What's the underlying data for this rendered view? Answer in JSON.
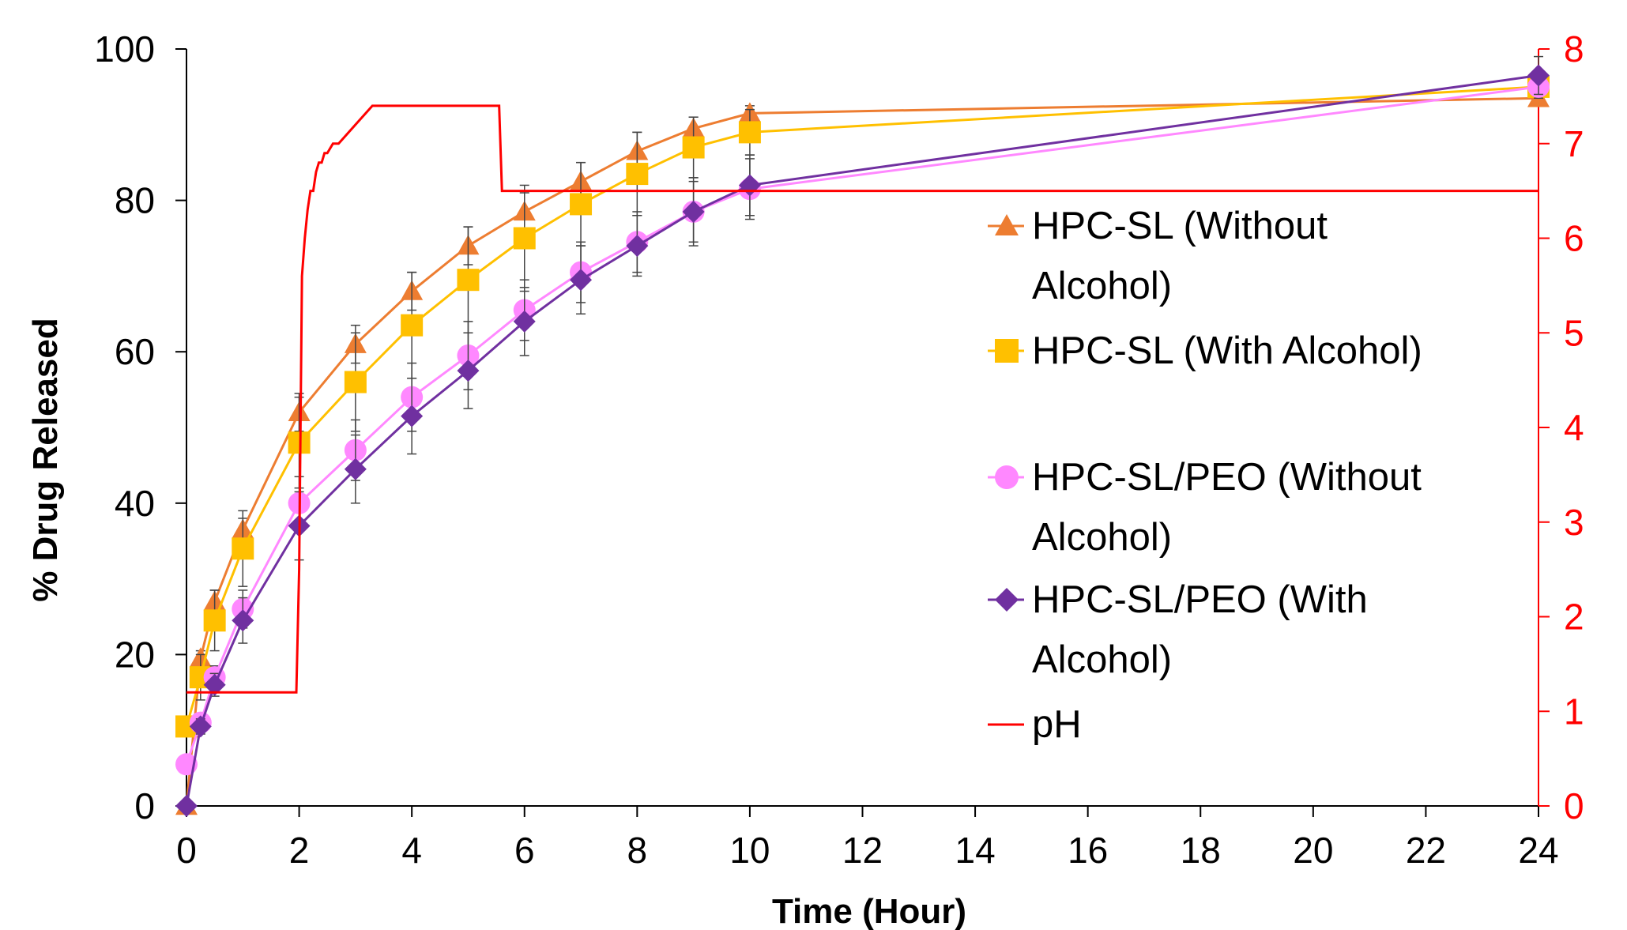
{
  "chart_data": {
    "type": "line",
    "xlabel": "Time (Hour)",
    "ylabel": "% Drug Released",
    "xlim": [
      0,
      24
    ],
    "ylim": [
      0,
      100
    ],
    "y2lim": [
      0,
      8
    ],
    "xticks": [
      0,
      2,
      4,
      6,
      8,
      10,
      12,
      14,
      16,
      18,
      20,
      22,
      24
    ],
    "yticks": [
      0,
      20,
      40,
      60,
      80,
      100
    ],
    "y2ticks": [
      0,
      1,
      2,
      3,
      4,
      5,
      6,
      7,
      8
    ],
    "grid": false,
    "legend_position": "right",
    "series": [
      {
        "name": "HPC-SL (Without Alcohol)",
        "color": "#ed7d31",
        "marker": "triangle",
        "x": [
          0,
          0.25,
          0.5,
          1,
          2,
          3,
          4,
          5,
          6,
          7,
          8,
          9,
          10,
          24
        ],
        "y": [
          0,
          19.5,
          27,
          36.5,
          52,
          61,
          68,
          74,
          78.5,
          82.5,
          86.5,
          89.5,
          91.5,
          93.5
        ],
        "err": [
          0,
          1,
          1.5,
          1.5,
          2.5,
          2.5,
          2.5,
          2.5,
          2.5,
          2.5,
          2.5,
          1.5,
          1,
          0.5
        ]
      },
      {
        "name": "HPC-SL (With Alcohol)",
        "color": "#ffc000",
        "marker": "square",
        "x": [
          0,
          0.25,
          0.5,
          1,
          2,
          3,
          4,
          5,
          6,
          7,
          8,
          9,
          10,
          24
        ],
        "y": [
          10.5,
          17,
          24.5,
          34,
          48,
          56,
          63.5,
          69.5,
          75,
          79.5,
          83.5,
          87,
          89,
          95
        ],
        "err": [
          0,
          3,
          4,
          5,
          6,
          6.5,
          7,
          7,
          7,
          5.5,
          5.5,
          4,
          3,
          1
        ]
      },
      {
        "name": "HPC-SL/PEO (Without Alcohol)",
        "color": "#ff88ff",
        "marker": "circle",
        "x": [
          0,
          0.25,
          0.5,
          1,
          2,
          3,
          4,
          5,
          6,
          7,
          8,
          9,
          10,
          24
        ],
        "y": [
          5.5,
          11,
          17,
          26,
          40,
          47,
          54,
          59.5,
          65.5,
          70.5,
          74.5,
          78.5,
          81.5,
          95
        ],
        "err": [
          0,
          1,
          1.5,
          2.5,
          3.5,
          4,
          4.5,
          4.5,
          4,
          4,
          4,
          4,
          4,
          1.5
        ]
      },
      {
        "name": "HPC-SL/PEO (With Alcohol)",
        "color": "#7030a0",
        "marker": "diamond",
        "x": [
          0,
          0.25,
          0.5,
          1,
          2,
          3,
          4,
          5,
          6,
          7,
          8,
          9,
          10,
          24
        ],
        "y": [
          0,
          10.5,
          16,
          24.5,
          37,
          44.5,
          51.5,
          57.5,
          64,
          69.5,
          74,
          78.5,
          82,
          96.5
        ],
        "err": [
          0,
          1,
          1.5,
          3,
          4.5,
          4.5,
          5,
          5,
          4.5,
          4.5,
          4,
          4.5,
          4,
          2.5
        ]
      },
      {
        "name": "pH",
        "color": "#ff0000",
        "axis": "right",
        "marker": "none",
        "x": [
          0,
          1.95,
          2.0,
          2.05,
          2.1,
          2.15,
          2.2,
          2.25,
          2.3,
          2.35,
          2.4,
          2.45,
          2.5,
          2.6,
          2.7,
          2.85,
          3.0,
          3.3,
          5.55,
          5.6,
          24
        ],
        "y": [
          1.2,
          1.2,
          2.5,
          5.6,
          6.0,
          6.3,
          6.5,
          6.5,
          6.7,
          6.8,
          6.8,
          6.9,
          6.9,
          7.0,
          7.0,
          7.1,
          7.2,
          7.4,
          7.4,
          6.5,
          6.5
        ]
      }
    ],
    "legend": [
      {
        "series": 0,
        "lines": [
          "HPC-SL (Without",
          "Alcohol)"
        ]
      },
      {
        "series": 1,
        "lines": [
          "HPC-SL (With Alcohol)"
        ]
      },
      {
        "series": 2,
        "lines": [
          "HPC-SL/PEO (Without",
          "Alcohol)"
        ]
      },
      {
        "series": 3,
        "lines": [
          "HPC-SL/PEO (With",
          "Alcohol)"
        ]
      },
      {
        "series": 4,
        "lines": [
          "pH"
        ]
      }
    ]
  }
}
